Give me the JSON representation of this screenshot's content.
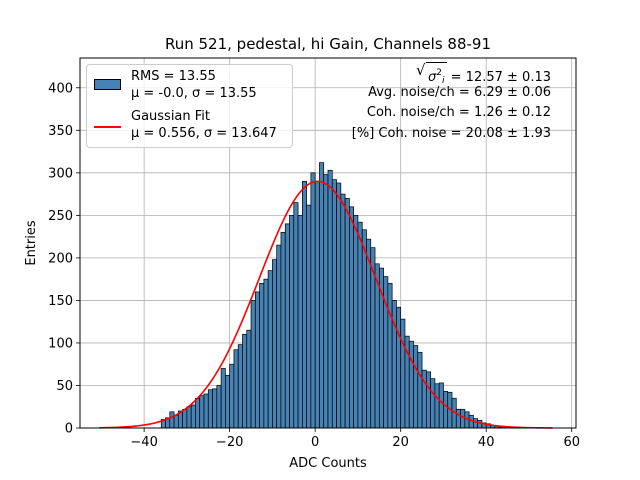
{
  "chart_data": {
    "type": "bar",
    "title": "Run 521, pedestal, hi Gain, Channels 88-91",
    "xlabel": "ADC Counts",
    "ylabel": "Entries",
    "xlim": [
      -55,
      61
    ],
    "ylim": [
      0,
      435
    ],
    "xticks": [
      -40,
      -20,
      0,
      20,
      40,
      60
    ],
    "yticks": [
      0,
      50,
      100,
      150,
      200,
      250,
      300,
      350,
      400
    ],
    "grid": true,
    "hist": {
      "name": "RMS = 13.55",
      "label2": "μ = -0.0, σ = 13.55",
      "color": "#4682b4",
      "bins": [
        [
          -36,
          10
        ],
        [
          -35,
          12
        ],
        [
          -34,
          19
        ],
        [
          -33,
          15
        ],
        [
          -32,
          20
        ],
        [
          -31,
          22
        ],
        [
          -30,
          25
        ],
        [
          -29,
          27
        ],
        [
          -28,
          35
        ],
        [
          -27,
          38
        ],
        [
          -26,
          40
        ],
        [
          -25,
          45
        ],
        [
          -24,
          46
        ],
        [
          -23,
          50
        ],
        [
          -22,
          70
        ],
        [
          -21,
          62
        ],
        [
          -20,
          75
        ],
        [
          -19,
          92
        ],
        [
          -18,
          98
        ],
        [
          -17,
          110
        ],
        [
          -16,
          115
        ],
        [
          -15,
          150
        ],
        [
          -14,
          160
        ],
        [
          -13,
          170
        ],
        [
          -12,
          175
        ],
        [
          -11,
          185
        ],
        [
          -10,
          198
        ],
        [
          -9,
          215
        ],
        [
          -8,
          230
        ],
        [
          -7,
          240
        ],
        [
          -6,
          250
        ],
        [
          -5,
          265
        ],
        [
          -4,
          250
        ],
        [
          -3,
          290
        ],
        [
          -2,
          262
        ],
        [
          -1,
          300
        ],
        [
          0,
          290
        ],
        [
          1,
          312
        ],
        [
          2,
          298
        ],
        [
          3,
          303
        ],
        [
          4,
          292
        ],
        [
          5,
          288
        ],
        [
          6,
          275
        ],
        [
          7,
          270
        ],
        [
          8,
          260
        ],
        [
          9,
          250
        ],
        [
          10,
          242
        ],
        [
          11,
          233
        ],
        [
          12,
          222
        ],
        [
          13,
          212
        ],
        [
          14,
          193
        ],
        [
          15,
          188
        ],
        [
          16,
          178
        ],
        [
          17,
          170
        ],
        [
          18,
          150
        ],
        [
          19,
          142
        ],
        [
          20,
          128
        ],
        [
          21,
          108
        ],
        [
          22,
          102
        ],
        [
          23,
          97
        ],
        [
          24,
          89
        ],
        [
          25,
          68
        ],
        [
          26,
          66
        ],
        [
          27,
          58
        ],
        [
          28,
          52
        ],
        [
          29,
          53
        ],
        [
          30,
          43
        ],
        [
          31,
          42
        ],
        [
          32,
          35
        ],
        [
          33,
          22
        ],
        [
          34,
          22
        ],
        [
          35,
          19
        ],
        [
          36,
          15
        ],
        [
          37,
          11
        ],
        [
          38,
          9
        ],
        [
          39,
          6
        ],
        [
          40,
          5
        ],
        [
          41,
          3
        ],
        [
          42,
          2
        ],
        [
          43,
          1
        ],
        [
          44,
          1
        ]
      ]
    },
    "fit": {
      "name": "Gaussian Fit",
      "label2": "μ = 0.556, σ = 13.647",
      "color": "#ff0000",
      "mu": 0.556,
      "sigma": 13.647,
      "amplitude": 290,
      "x_range": [
        -50.5,
        55.5
      ]
    },
    "legend_location": "upper-left",
    "annotations": {
      "sigma_i_value": "= 12.57 ± 0.13",
      "avg_noise": "Avg. noise/ch = 6.29 ± 0.06",
      "coh_noise": "Coh. noise/ch = 1.26 ± 0.12",
      "coh_noise_pct": "[%] Coh. noise = 20.08 ± 1.93"
    }
  }
}
